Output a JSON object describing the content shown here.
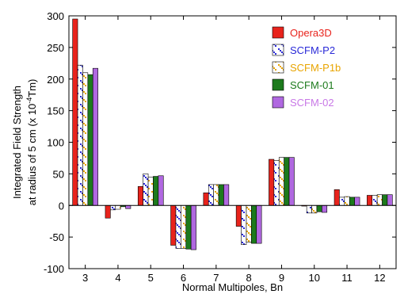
{
  "chart_data": {
    "type": "bar",
    "title": "",
    "xlabel": "Normal Multipoles, Bn",
    "ylabel_line1": "Integrated Field Strength",
    "ylabel_line2_prefix": "at radius of 5 cm (x 10",
    "ylabel_line2_exp": "-4",
    "ylabel_line2_suffix": "Tm)",
    "ylim": [
      -100,
      300
    ],
    "yticks": [
      -100,
      -50,
      0,
      50,
      100,
      150,
      200,
      250,
      300
    ],
    "categories": [
      "3",
      "4",
      "5",
      "6",
      "7",
      "8",
      "9",
      "10",
      "11",
      "12"
    ],
    "legend_position": "top-right",
    "grid": false,
    "series": [
      {
        "name": "Opera3D",
        "color": "#e8231c",
        "text_color": "#e8231c",
        "pattern": "solid",
        "values": [
          295,
          -20,
          30,
          -63,
          20,
          -33,
          73,
          -1,
          25,
          16
        ]
      },
      {
        "name": "SCFM-P2",
        "color": "#2a2ad8",
        "text_color": "#2a2ad8",
        "pattern": "diagonal",
        "values": [
          222,
          -7,
          50,
          -68,
          33,
          -62,
          71,
          -12,
          13,
          16
        ]
      },
      {
        "name": "SCFM-P1b",
        "color": "#e8a400",
        "text_color": "#e8a400",
        "pattern": "diagonal",
        "values": [
          210,
          -6,
          45,
          -68,
          33,
          -58,
          76,
          -12,
          14,
          17
        ]
      },
      {
        "name": "SCFM-01",
        "color": "#1c7a1c",
        "text_color": "#1c7a1c",
        "pattern": "solid",
        "values": [
          207,
          -2,
          46,
          -69,
          33,
          -60,
          76,
          -10,
          13,
          17
        ]
      },
      {
        "name": "SCFM-02",
        "color": "#b068e0",
        "text_color": "#c878e6",
        "pattern": "solid",
        "values": [
          217,
          -5,
          47,
          -70,
          33,
          -60,
          76,
          -11,
          13,
          17
        ]
      }
    ]
  }
}
